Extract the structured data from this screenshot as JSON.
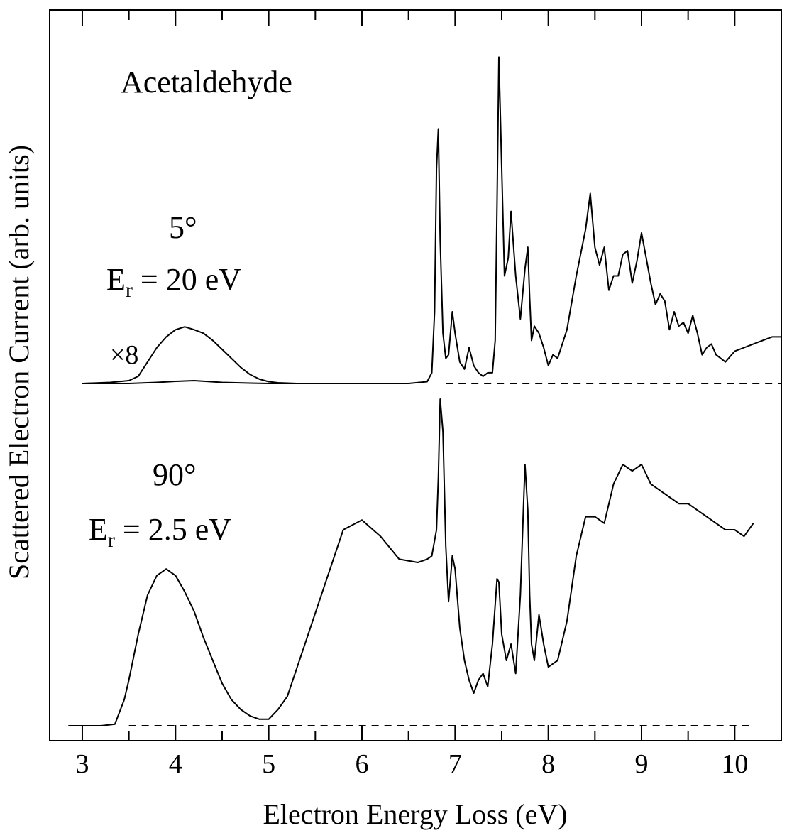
{
  "chart_data": {
    "type": "line",
    "title": "",
    "xlabel": "Electron Energy Loss (eV)",
    "ylabel": "Scattered Electron Current (arb. units)",
    "xlim": [
      2.65,
      10.5
    ],
    "xticks": [
      3,
      4,
      5,
      6,
      7,
      8,
      9,
      10
    ],
    "xtick_labels": [
      "3",
      "4",
      "5",
      "6",
      "7",
      "8",
      "9",
      "10"
    ],
    "grid": false,
    "annotations": {
      "molecule": "Acetaldehyde",
      "angle_top": "5°",
      "energy_top_prefix": "E",
      "energy_top_sub": "r",
      "energy_top_suffix": " = 20 eV",
      "scale_factor": "×8",
      "angle_bottom": "90°",
      "energy_bottom_prefix": "E",
      "energy_bottom_sub": "r",
      "energy_bottom_suffix": " = 2.5 eV"
    },
    "series": [
      {
        "panel": "top",
        "x": [
          3.0,
          3.5,
          3.8,
          4.0,
          4.2,
          4.5,
          4.8,
          5.0,
          5.5,
          6.0,
          6.5,
          6.7,
          6.75,
          6.78,
          6.8,
          6.82,
          6.84,
          6.87,
          6.9,
          6.93,
          6.97,
          7.0,
          7.05,
          7.1,
          7.15,
          7.2,
          7.25,
          7.3,
          7.35,
          7.4,
          7.43,
          7.45,
          7.47,
          7.5,
          7.53,
          7.57,
          7.6,
          7.65,
          7.7,
          7.75,
          7.78,
          7.8,
          7.82,
          7.85,
          7.9,
          7.95,
          8.0,
          8.05,
          8.1,
          8.2,
          8.3,
          8.4,
          8.45,
          8.5,
          8.55,
          8.6,
          8.65,
          8.7,
          8.75,
          8.8,
          8.85,
          8.9,
          8.95,
          9.0,
          9.05,
          9.1,
          9.15,
          9.2,
          9.25,
          9.3,
          9.35,
          9.4,
          9.45,
          9.5,
          9.55,
          9.6,
          9.65,
          9.7,
          9.75,
          9.8,
          9.85,
          9.9,
          10.0,
          10.1,
          10.2,
          10.3,
          10.4,
          10.5
        ],
        "y": [
          0,
          0,
          0.3,
          0.6,
          0.8,
          0.3,
          0.1,
          0,
          0,
          0,
          0,
          0.5,
          3,
          20,
          60,
          71,
          40,
          14,
          7,
          8,
          20,
          14,
          6,
          4,
          10,
          5,
          3,
          2,
          3,
          3,
          12,
          50,
          91,
          60,
          30,
          35,
          48,
          30,
          18,
          32,
          38,
          24,
          12,
          16,
          14,
          10,
          5,
          8,
          7,
          15,
          30,
          43,
          53,
          38,
          33,
          38,
          26,
          30,
          30,
          36,
          37,
          28,
          34,
          42,
          35,
          28,
          22,
          25,
          23,
          15,
          20,
          16,
          17,
          14,
          19,
          14,
          8,
          10,
          11,
          8,
          7,
          6,
          9,
          10,
          11,
          12,
          13,
          13
        ]
      },
      {
        "panel": "top",
        "name": "×8",
        "x": [
          3.0,
          3.3,
          3.5,
          3.6,
          3.7,
          3.8,
          3.9,
          4.0,
          4.1,
          4.2,
          4.3,
          4.4,
          4.5,
          4.6,
          4.7,
          4.8,
          4.9,
          5.0,
          5.1,
          5.2,
          5.3,
          5.5
        ],
        "y": [
          0,
          0.3,
          0.8,
          2,
          6,
          10,
          13,
          15,
          15.8,
          15,
          14,
          12,
          9.5,
          7,
          4.5,
          2.5,
          1.2,
          0.5,
          0.2,
          0.1,
          0,
          0
        ]
      },
      {
        "panel": "bottom",
        "x": [
          2.85,
          3.2,
          3.35,
          3.45,
          3.5,
          3.6,
          3.7,
          3.8,
          3.9,
          4.0,
          4.1,
          4.2,
          4.3,
          4.4,
          4.5,
          4.6,
          4.7,
          4.8,
          4.9,
          5.0,
          5.1,
          5.2,
          5.4,
          5.6,
          5.8,
          6.0,
          6.2,
          6.4,
          6.6,
          6.7,
          6.75,
          6.8,
          6.82,
          6.84,
          6.87,
          6.9,
          6.93,
          6.97,
          7.0,
          7.05,
          7.1,
          7.15,
          7.2,
          7.25,
          7.3,
          7.35,
          7.4,
          7.45,
          7.47,
          7.5,
          7.55,
          7.6,
          7.65,
          7.7,
          7.73,
          7.75,
          7.78,
          7.8,
          7.82,
          7.85,
          7.9,
          7.95,
          8.0,
          8.1,
          8.2,
          8.3,
          8.4,
          8.5,
          8.6,
          8.7,
          8.8,
          8.9,
          9.0,
          9.1,
          9.2,
          9.3,
          9.4,
          9.5,
          9.6,
          9.7,
          9.8,
          9.9,
          10.0,
          10.1,
          10.2
        ],
        "y": [
          0,
          0,
          0.5,
          8,
          14,
          28,
          40,
          46,
          48,
          46,
          41,
          35,
          27,
          20,
          13,
          8,
          5,
          3,
          2,
          2,
          5,
          9,
          26,
          43,
          60,
          63,
          58,
          51,
          50,
          51,
          52,
          60,
          76,
          100,
          90,
          55,
          38,
          52,
          48,
          30,
          20,
          14,
          10,
          14,
          16,
          12,
          25,
          45,
          44,
          28,
          20,
          25,
          16,
          40,
          64,
          80,
          66,
          40,
          25,
          20,
          34,
          25,
          18,
          20,
          32,
          52,
          64,
          64,
          62,
          74,
          80,
          78,
          80,
          74,
          72,
          70,
          68,
          68,
          66,
          64,
          62,
          60,
          60,
          58,
          62
        ]
      }
    ]
  }
}
